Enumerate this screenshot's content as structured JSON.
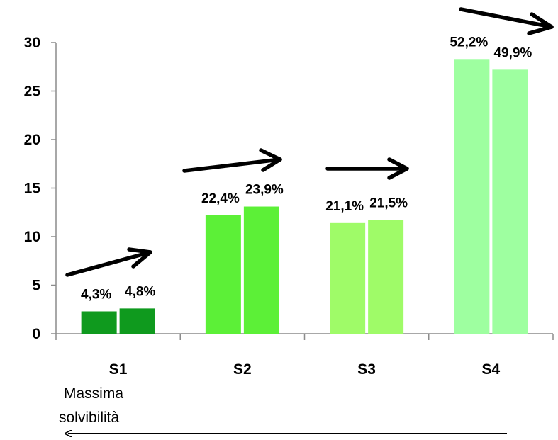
{
  "chart_data": {
    "type": "bar",
    "categories": [
      "S1",
      "S2",
      "S3",
      "S4"
    ],
    "series": [
      {
        "values": [
          2.3,
          12.2,
          11.4,
          28.3
        ],
        "labels": [
          "4,3%",
          "22,4%",
          "21,1%",
          "52,2%"
        ]
      },
      {
        "values": [
          2.6,
          13.1,
          11.7,
          27.2
        ],
        "labels": [
          "4,8%",
          "23,9%",
          "21,5%",
          "49,9%"
        ]
      }
    ],
    "yticks": [
      "0",
      "5",
      "10",
      "15",
      "20",
      "25",
      "30"
    ],
    "ylim": [
      0,
      30
    ],
    "grid": false,
    "colors": [
      "#0f9a1e",
      "#5cf037",
      "#9ffb68",
      "#9effa0"
    ],
    "bottom_note": [
      "Massima",
      "solvibilità"
    ]
  }
}
